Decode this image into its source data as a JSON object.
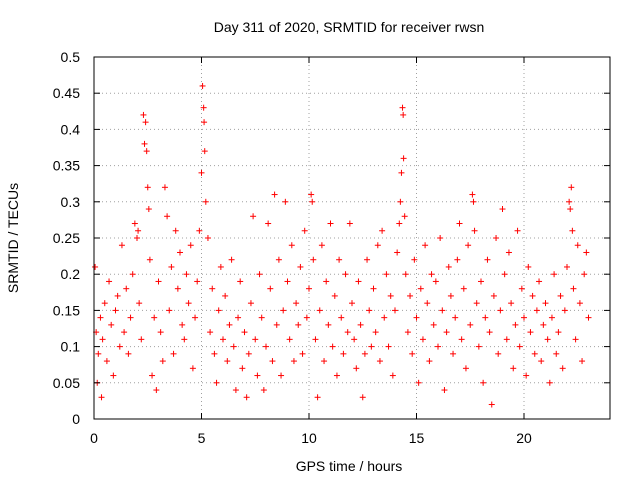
{
  "chart_data": {
    "type": "scatter",
    "title": "Day 311 of 2020, SRMTID for receiver rwsn",
    "xlabel": "GPS time / hours",
    "ylabel": "SRMTID / TECUs",
    "xlim": [
      0,
      24
    ],
    "ylim": [
      0,
      0.5
    ],
    "xticks": [
      0,
      5,
      10,
      15,
      20
    ],
    "xtick_labels": [
      "0",
      "5",
      "10",
      "15",
      "20"
    ],
    "yticks": [
      0,
      0.05,
      0.1,
      0.15,
      0.2,
      0.25,
      0.3,
      0.35,
      0.4,
      0.45,
      0.5
    ],
    "ytick_labels": [
      "0",
      "0.05",
      "0.1",
      "0.15",
      "0.2",
      "0.25",
      "0.3",
      "0.35",
      "0.4",
      "0.45",
      "0.5"
    ],
    "grid": true,
    "marker": "+",
    "series": [
      {
        "name": "SRMTID",
        "color": "#ff0000",
        "points": [
          [
            0.05,
            0.21
          ],
          [
            0.1,
            0.12
          ],
          [
            0.15,
            0.05
          ],
          [
            0.2,
            0.09
          ],
          [
            0.3,
            0.14
          ],
          [
            0.35,
            0.03
          ],
          [
            0.4,
            0.11
          ],
          [
            0.5,
            0.16
          ],
          [
            0.6,
            0.08
          ],
          [
            0.7,
            0.19
          ],
          [
            0.8,
            0.13
          ],
          [
            0.9,
            0.06
          ],
          [
            1.0,
            0.15
          ],
          [
            1.1,
            0.17
          ],
          [
            1.2,
            0.1
          ],
          [
            1.3,
            0.24
          ],
          [
            1.4,
            0.12
          ],
          [
            1.5,
            0.18
          ],
          [
            1.6,
            0.09
          ],
          [
            1.7,
            0.14
          ],
          [
            1.8,
            0.2
          ],
          [
            1.9,
            0.27
          ],
          [
            2.0,
            0.25
          ],
          [
            2.05,
            0.26
          ],
          [
            2.1,
            0.16
          ],
          [
            2.2,
            0.11
          ],
          [
            2.3,
            0.42
          ],
          [
            2.35,
            0.38
          ],
          [
            2.4,
            0.41
          ],
          [
            2.45,
            0.37
          ],
          [
            2.5,
            0.32
          ],
          [
            2.55,
            0.29
          ],
          [
            2.6,
            0.22
          ],
          [
            2.7,
            0.06
          ],
          [
            2.8,
            0.14
          ],
          [
            2.9,
            0.04
          ],
          [
            3.0,
            0.19
          ],
          [
            3.1,
            0.12
          ],
          [
            3.2,
            0.08
          ],
          [
            3.3,
            0.32
          ],
          [
            3.4,
            0.28
          ],
          [
            3.5,
            0.15
          ],
          [
            3.6,
            0.21
          ],
          [
            3.7,
            0.09
          ],
          [
            3.8,
            0.26
          ],
          [
            3.9,
            0.18
          ],
          [
            4.0,
            0.23
          ],
          [
            4.1,
            0.13
          ],
          [
            4.2,
            0.11
          ],
          [
            4.3,
            0.2
          ],
          [
            4.4,
            0.16
          ],
          [
            4.5,
            0.24
          ],
          [
            4.6,
            0.07
          ],
          [
            4.7,
            0.14
          ],
          [
            4.8,
            0.19
          ],
          [
            4.9,
            0.26
          ],
          [
            5.0,
            0.34
          ],
          [
            5.05,
            0.46
          ],
          [
            5.1,
            0.43
          ],
          [
            5.12,
            0.41
          ],
          [
            5.15,
            0.37
          ],
          [
            5.2,
            0.3
          ],
          [
            5.3,
            0.25
          ],
          [
            5.4,
            0.12
          ],
          [
            5.5,
            0.18
          ],
          [
            5.6,
            0.09
          ],
          [
            5.7,
            0.05
          ],
          [
            5.8,
            0.15
          ],
          [
            5.9,
            0.21
          ],
          [
            6.0,
            0.11
          ],
          [
            6.1,
            0.17
          ],
          [
            6.2,
            0.08
          ],
          [
            6.3,
            0.13
          ],
          [
            6.4,
            0.22
          ],
          [
            6.5,
            0.1
          ],
          [
            6.6,
            0.04
          ],
          [
            6.7,
            0.14
          ],
          [
            6.8,
            0.19
          ],
          [
            6.9,
            0.07
          ],
          [
            7.0,
            0.12
          ],
          [
            7.1,
            0.03
          ],
          [
            7.2,
            0.09
          ],
          [
            7.3,
            0.16
          ],
          [
            7.4,
            0.28
          ],
          [
            7.5,
            0.11
          ],
          [
            7.6,
            0.06
          ],
          [
            7.7,
            0.2
          ],
          [
            7.8,
            0.14
          ],
          [
            7.9,
            0.04
          ],
          [
            8.0,
            0.1
          ],
          [
            8.1,
            0.27
          ],
          [
            8.2,
            0.18
          ],
          [
            8.3,
            0.08
          ],
          [
            8.4,
            0.31
          ],
          [
            8.5,
            0.13
          ],
          [
            8.6,
            0.22
          ],
          [
            8.7,
            0.06
          ],
          [
            8.8,
            0.15
          ],
          [
            8.9,
            0.3
          ],
          [
            9.0,
            0.19
          ],
          [
            9.1,
            0.11
          ],
          [
            9.2,
            0.24
          ],
          [
            9.3,
            0.08
          ],
          [
            9.4,
            0.16
          ],
          [
            9.5,
            0.13
          ],
          [
            9.6,
            0.21
          ],
          [
            9.7,
            0.09
          ],
          [
            9.8,
            0.26
          ],
          [
            9.9,
            0.14
          ],
          [
            10.0,
            0.18
          ],
          [
            10.1,
            0.31
          ],
          [
            10.15,
            0.3
          ],
          [
            10.2,
            0.22
          ],
          [
            10.3,
            0.11
          ],
          [
            10.4,
            0.03
          ],
          [
            10.5,
            0.15
          ],
          [
            10.6,
            0.24
          ],
          [
            10.7,
            0.08
          ],
          [
            10.8,
            0.19
          ],
          [
            10.9,
            0.13
          ],
          [
            11.0,
            0.27
          ],
          [
            11.1,
            0.1
          ],
          [
            11.2,
            0.17
          ],
          [
            11.3,
            0.06
          ],
          [
            11.4,
            0.22
          ],
          [
            11.5,
            0.14
          ],
          [
            11.6,
            0.09
          ],
          [
            11.7,
            0.2
          ],
          [
            11.8,
            0.12
          ],
          [
            11.9,
            0.27
          ],
          [
            12.0,
            0.16
          ],
          [
            12.1,
            0.11
          ],
          [
            12.2,
            0.07
          ],
          [
            12.3,
            0.19
          ],
          [
            12.4,
            0.13
          ],
          [
            12.5,
            0.03
          ],
          [
            12.6,
            0.09
          ],
          [
            12.7,
            0.22
          ],
          [
            12.8,
            0.15
          ],
          [
            12.9,
            0.1
          ],
          [
            13.0,
            0.18
          ],
          [
            13.1,
            0.12
          ],
          [
            13.2,
            0.24
          ],
          [
            13.3,
            0.08
          ],
          [
            13.4,
            0.26
          ],
          [
            13.5,
            0.14
          ],
          [
            13.6,
            0.2
          ],
          [
            13.7,
            0.1
          ],
          [
            13.8,
            0.17
          ],
          [
            13.9,
            0.06
          ],
          [
            14.0,
            0.15
          ],
          [
            14.1,
            0.23
          ],
          [
            14.2,
            0.27
          ],
          [
            14.25,
            0.3
          ],
          [
            14.3,
            0.34
          ],
          [
            14.35,
            0.43
          ],
          [
            14.38,
            0.42
          ],
          [
            14.4,
            0.36
          ],
          [
            14.45,
            0.28
          ],
          [
            14.5,
            0.2
          ],
          [
            14.6,
            0.12
          ],
          [
            14.7,
            0.17
          ],
          [
            14.8,
            0.09
          ],
          [
            14.9,
            0.22
          ],
          [
            15.0,
            0.14
          ],
          [
            15.1,
            0.05
          ],
          [
            15.2,
            0.18
          ],
          [
            15.3,
            0.11
          ],
          [
            15.4,
            0.24
          ],
          [
            15.5,
            0.16
          ],
          [
            15.6,
            0.08
          ],
          [
            15.7,
            0.2
          ],
          [
            15.8,
            0.13
          ],
          [
            15.9,
            0.19
          ],
          [
            16.0,
            0.1
          ],
          [
            16.1,
            0.25
          ],
          [
            16.2,
            0.15
          ],
          [
            16.3,
            0.04
          ],
          [
            16.4,
            0.12
          ],
          [
            16.5,
            0.21
          ],
          [
            16.6,
            0.17
          ],
          [
            16.7,
            0.09
          ],
          [
            16.8,
            0.14
          ],
          [
            16.9,
            0.22
          ],
          [
            17.0,
            0.27
          ],
          [
            17.1,
            0.11
          ],
          [
            17.2,
            0.18
          ],
          [
            17.3,
            0.07
          ],
          [
            17.4,
            0.24
          ],
          [
            17.5,
            0.13
          ],
          [
            17.6,
            0.31
          ],
          [
            17.65,
            0.3
          ],
          [
            17.7,
            0.26
          ],
          [
            17.8,
            0.16
          ],
          [
            17.9,
            0.1
          ],
          [
            18.0,
            0.19
          ],
          [
            18.1,
            0.05
          ],
          [
            18.2,
            0.14
          ],
          [
            18.3,
            0.22
          ],
          [
            18.4,
            0.12
          ],
          [
            18.5,
            0.02
          ],
          [
            18.6,
            0.17
          ],
          [
            18.7,
            0.25
          ],
          [
            18.8,
            0.09
          ],
          [
            18.9,
            0.15
          ],
          [
            19.0,
            0.29
          ],
          [
            19.1,
            0.2
          ],
          [
            19.2,
            0.11
          ],
          [
            19.3,
            0.23
          ],
          [
            19.4,
            0.16
          ],
          [
            19.5,
            0.07
          ],
          [
            19.6,
            0.13
          ],
          [
            19.7,
            0.26
          ],
          [
            19.8,
            0.1
          ],
          [
            19.9,
            0.18
          ],
          [
            20.0,
            0.14
          ],
          [
            20.1,
            0.06
          ],
          [
            20.2,
            0.21
          ],
          [
            20.3,
            0.12
          ],
          [
            20.4,
            0.17
          ],
          [
            20.5,
            0.09
          ],
          [
            20.6,
            0.15
          ],
          [
            20.7,
            0.19
          ],
          [
            20.8,
            0.08
          ],
          [
            20.9,
            0.13
          ],
          [
            21.0,
            0.16
          ],
          [
            21.1,
            0.11
          ],
          [
            21.2,
            0.05
          ],
          [
            21.3,
            0.14
          ],
          [
            21.4,
            0.2
          ],
          [
            21.5,
            0.09
          ],
          [
            21.6,
            0.12
          ],
          [
            21.7,
            0.17
          ],
          [
            21.8,
            0.07
          ],
          [
            21.9,
            0.15
          ],
          [
            22.0,
            0.21
          ],
          [
            22.1,
            0.3
          ],
          [
            22.15,
            0.29
          ],
          [
            22.2,
            0.32
          ],
          [
            22.25,
            0.26
          ],
          [
            22.3,
            0.18
          ],
          [
            22.4,
            0.11
          ],
          [
            22.5,
            0.24
          ],
          [
            22.6,
            0.16
          ],
          [
            22.7,
            0.08
          ],
          [
            22.8,
            0.2
          ],
          [
            22.9,
            0.23
          ],
          [
            23.0,
            0.14
          ]
        ]
      }
    ]
  }
}
